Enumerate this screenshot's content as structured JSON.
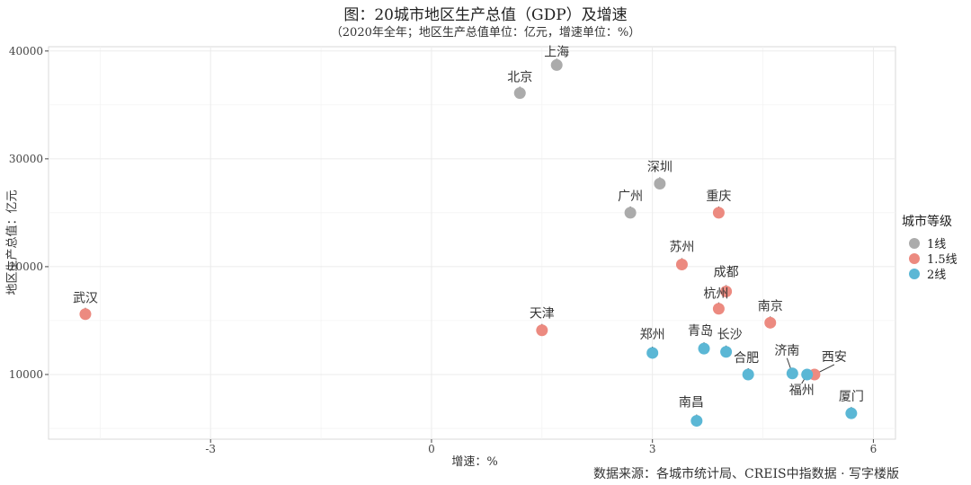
{
  "chart_data": {
    "type": "scatter",
    "title": "图：20城市地区生产总值（GDP）及增速",
    "subtitle": "（2020年全年；地区生产总值单位：亿元，增速单位：%）",
    "xlabel": "增速：%",
    "ylabel": "地区生产总值：亿元",
    "xlim": [
      -5.2,
      6.3
    ],
    "ylim": [
      4000,
      40400
    ],
    "x_ticks": [
      -3,
      0,
      3,
      6
    ],
    "y_ticks": [
      10000,
      20000,
      30000,
      40000
    ],
    "grid": true,
    "legend": {
      "title": "城市等级",
      "placement": "right",
      "entries": [
        {
          "name": "1线",
          "color": "#ababab"
        },
        {
          "name": "1.5线",
          "color": "#ec8a80"
        },
        {
          "name": "2线",
          "color": "#5bb7d5"
        }
      ]
    },
    "points": [
      {
        "label": "上海",
        "x": 1.7,
        "y": 38700,
        "tier": "1线"
      },
      {
        "label": "北京",
        "x": 1.2,
        "y": 36100,
        "tier": "1线"
      },
      {
        "label": "深圳",
        "x": 3.1,
        "y": 27700,
        "tier": "1线"
      },
      {
        "label": "广州",
        "x": 2.7,
        "y": 25000,
        "tier": "1线"
      },
      {
        "label": "重庆",
        "x": 3.9,
        "y": 25000,
        "tier": "1.5线"
      },
      {
        "label": "苏州",
        "x": 3.4,
        "y": 20200,
        "tier": "1.5线"
      },
      {
        "label": "成都",
        "x": 4.0,
        "y": 17700,
        "tier": "1.5线"
      },
      {
        "label": "杭州",
        "x": 3.9,
        "y": 16100,
        "tier": "1.5线"
      },
      {
        "label": "武汉",
        "x": -4.7,
        "y": 15600,
        "tier": "1.5线"
      },
      {
        "label": "南京",
        "x": 4.6,
        "y": 14800,
        "tier": "1.5线"
      },
      {
        "label": "天津",
        "x": 1.5,
        "y": 14100,
        "tier": "1.5线"
      },
      {
        "label": "西安",
        "x": 5.2,
        "y": 10000,
        "tier": "1.5线"
      },
      {
        "label": "青岛",
        "x": 3.7,
        "y": 12400,
        "tier": "2线"
      },
      {
        "label": "长沙",
        "x": 4.0,
        "y": 12100,
        "tier": "2线"
      },
      {
        "label": "郑州",
        "x": 3.0,
        "y": 12000,
        "tier": "2线"
      },
      {
        "label": "济南",
        "x": 4.9,
        "y": 10100,
        "tier": "2线"
      },
      {
        "label": "福州",
        "x": 5.1,
        "y": 10000,
        "tier": "2线"
      },
      {
        "label": "合肥",
        "x": 4.3,
        "y": 10000,
        "tier": "2线"
      },
      {
        "label": "厦门",
        "x": 5.7,
        "y": 6400,
        "tier": "2线"
      },
      {
        "label": "南昌",
        "x": 3.6,
        "y": 5700,
        "tier": "2线"
      }
    ],
    "source_note": "数据来源：各城市统计局、CREIS中指数据 · 写字楼版"
  }
}
